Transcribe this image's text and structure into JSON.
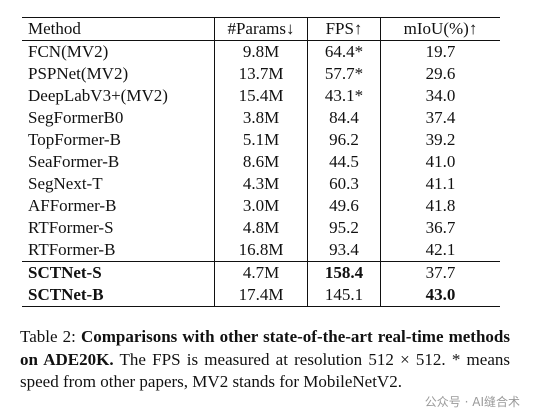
{
  "table": {
    "header": [
      "Method",
      "#Params↓",
      "FPS↑",
      "mIoU(%)↑"
    ],
    "rows": [
      [
        "FCN(MV2)",
        "9.8M",
        "64.4*",
        "19.7"
      ],
      [
        "PSPNet(MV2)",
        "13.7M",
        "57.7*",
        "29.6"
      ],
      [
        "DeepLabV3+(MV2)",
        "15.4M",
        "43.1*",
        "34.0"
      ],
      [
        "SegFormerB0",
        "3.8M",
        "84.4",
        "37.4"
      ],
      [
        "TopFormer-B",
        "5.1M",
        "96.2",
        "39.2"
      ],
      [
        "SeaFormer-B",
        "8.6M",
        "44.5",
        "41.0"
      ],
      [
        "SegNext-T",
        "4.3M",
        "60.3",
        "41.1"
      ],
      [
        "AFFormer-B",
        "3.0M",
        "49.6",
        "41.8"
      ],
      [
        "RTFormer-S",
        "4.8M",
        "95.2",
        "36.7"
      ],
      [
        "RTFormer-B",
        "16.8M",
        "93.4",
        "42.1"
      ],
      [
        "SCTNet-S",
        "4.7M",
        "158.4",
        "37.7"
      ],
      [
        "SCTNet-B",
        "17.4M",
        "145.1",
        "43.0"
      ]
    ]
  },
  "caption": {
    "label": "Table 2: ",
    "bold": "Comparisons with other state-of-the-art real-time methods on ADE20K.",
    "text": " The FPS is measured at resolution 512 × 512. * means speed from other papers, MV2 stands for MobileNetV2."
  },
  "watermark": "公众号 · AI缝合术"
}
